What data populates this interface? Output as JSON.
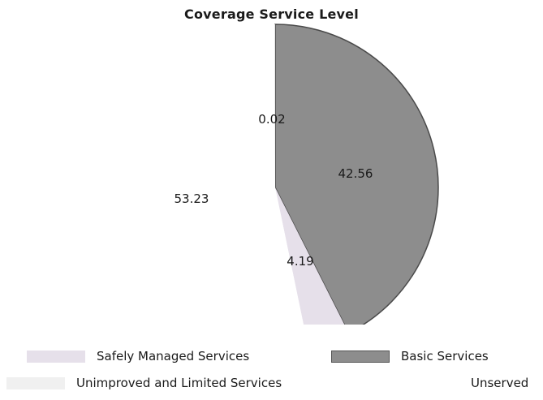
{
  "chart_data": {
    "type": "pie",
    "title": "Coverage Service Level",
    "slices": [
      {
        "name": "Safely Managed Services",
        "value": 4.19,
        "label": "4.19",
        "color": "#e6e0ea"
      },
      {
        "name": "Basic Services",
        "value": 42.56,
        "label": "42.56",
        "color": "#8d8d8d"
      },
      {
        "name": "Unimproved and Limited Services",
        "value": 0.02,
        "label": "0.02",
        "color": "#f0f0f0"
      },
      {
        "name": "Unserved",
        "value": 53.23,
        "label": "53.23",
        "color": "#ffffff"
      }
    ],
    "legend_position": "bottom"
  }
}
